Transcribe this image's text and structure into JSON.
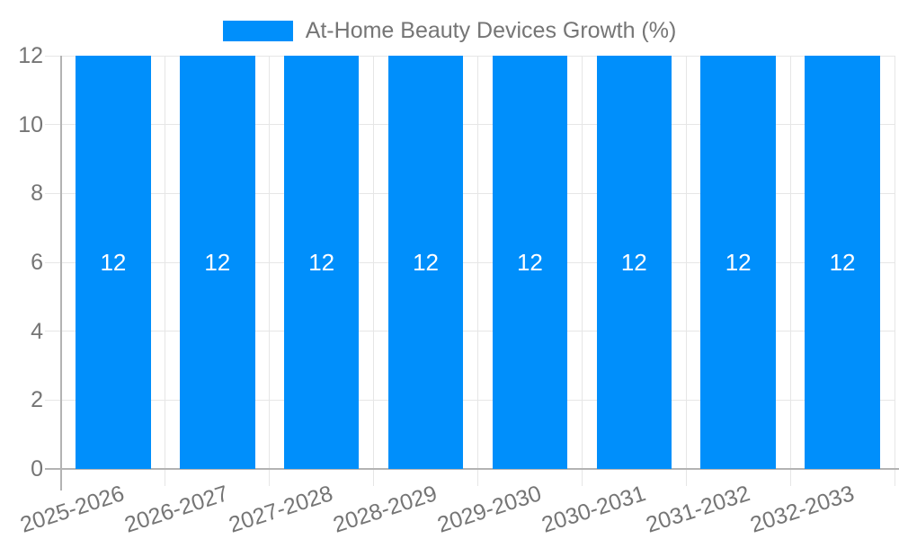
{
  "legend": {
    "label": "At-Home Beauty Devices Growth (%)"
  },
  "chart_data": {
    "type": "bar",
    "title": "At-Home Beauty Devices Growth (%)",
    "categories": [
      "2025-2026",
      "2026-2027",
      "2027-2028",
      "2028-2029",
      "2029-2030",
      "2030-2031",
      "2031-2032",
      "2032-2033"
    ],
    "values": [
      12,
      12,
      12,
      12,
      12,
      12,
      12,
      12
    ],
    "bar_labels": [
      "12",
      "12",
      "12",
      "12",
      "12",
      "12",
      "12",
      "12"
    ],
    "xlabel": "",
    "ylabel": "",
    "ylim": [
      0,
      12
    ],
    "yticks": [
      0,
      2,
      4,
      6,
      8,
      10,
      12
    ],
    "grid": true,
    "legend_position": "top-center",
    "x_label_rotation_deg": -18
  },
  "colors": {
    "bar": "#008ffb",
    "axis_text": "#757575",
    "gridline": "#e6e6e6",
    "axis_line": "#b3b3b3",
    "value_label": "#ffffff",
    "background": "#ffffff"
  }
}
